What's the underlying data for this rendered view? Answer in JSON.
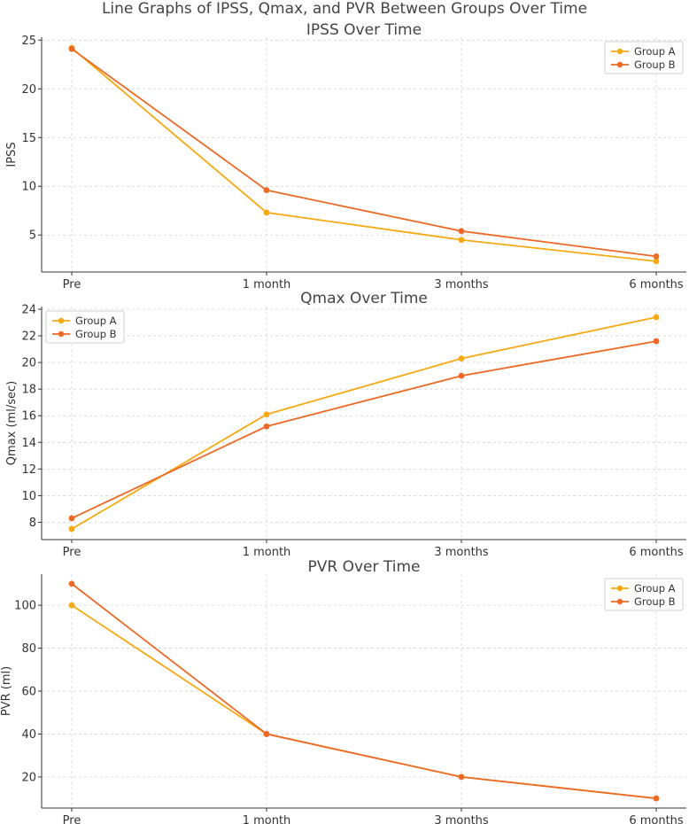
{
  "figure_title": "Line Graphs of IPSS, Qmax, and PVR Between Groups Over Time",
  "chart_data": [
    {
      "type": "line",
      "title": "IPSS Over Time",
      "xlabel": "",
      "ylabel": "IPSS",
      "categories": [
        "Pre",
        "1 month",
        "3 months",
        "6 months"
      ],
      "ylim": [
        1.2,
        25.3
      ],
      "yticks": [
        5,
        10,
        15,
        20,
        25
      ],
      "grid": true,
      "legend": "top-right",
      "series": [
        {
          "name": "Group A",
          "color": "#F5A912",
          "values": [
            24.2,
            7.3,
            4.5,
            2.3
          ]
        },
        {
          "name": "Group B",
          "color": "#EC6A26",
          "values": [
            24.1,
            9.6,
            5.4,
            2.8
          ]
        }
      ]
    },
    {
      "type": "line",
      "title": "Qmax Over Time",
      "xlabel": "",
      "ylabel": "Qmax (ml/sec)",
      "categories": [
        "Pre",
        "1 month",
        "3 months",
        "6 months"
      ],
      "ylim": [
        6.7,
        24.2
      ],
      "yticks": [
        8,
        10,
        12,
        14,
        16,
        18,
        20,
        22,
        24
      ],
      "grid": true,
      "legend": "top-left",
      "series": [
        {
          "name": "Group A",
          "color": "#F5A912",
          "values": [
            7.5,
            16.1,
            20.3,
            23.4
          ]
        },
        {
          "name": "Group B",
          "color": "#EC6A26",
          "values": [
            8.3,
            15.2,
            19.0,
            21.6
          ]
        }
      ]
    },
    {
      "type": "line",
      "title": "PVR Over Time",
      "xlabel": "",
      "ylabel": "PVR (ml)",
      "categories": [
        "Pre",
        "1 month",
        "3 months",
        "6 months"
      ],
      "ylim": [
        5.5,
        114.5
      ],
      "yticks": [
        20,
        40,
        60,
        80,
        100
      ],
      "grid": true,
      "legend": "top-right",
      "series": [
        {
          "name": "Group A",
          "color": "#F5A912",
          "values": [
            100,
            40,
            20,
            10
          ]
        },
        {
          "name": "Group B",
          "color": "#EC6A26",
          "values": [
            110,
            40,
            20,
            10
          ]
        }
      ]
    }
  ]
}
